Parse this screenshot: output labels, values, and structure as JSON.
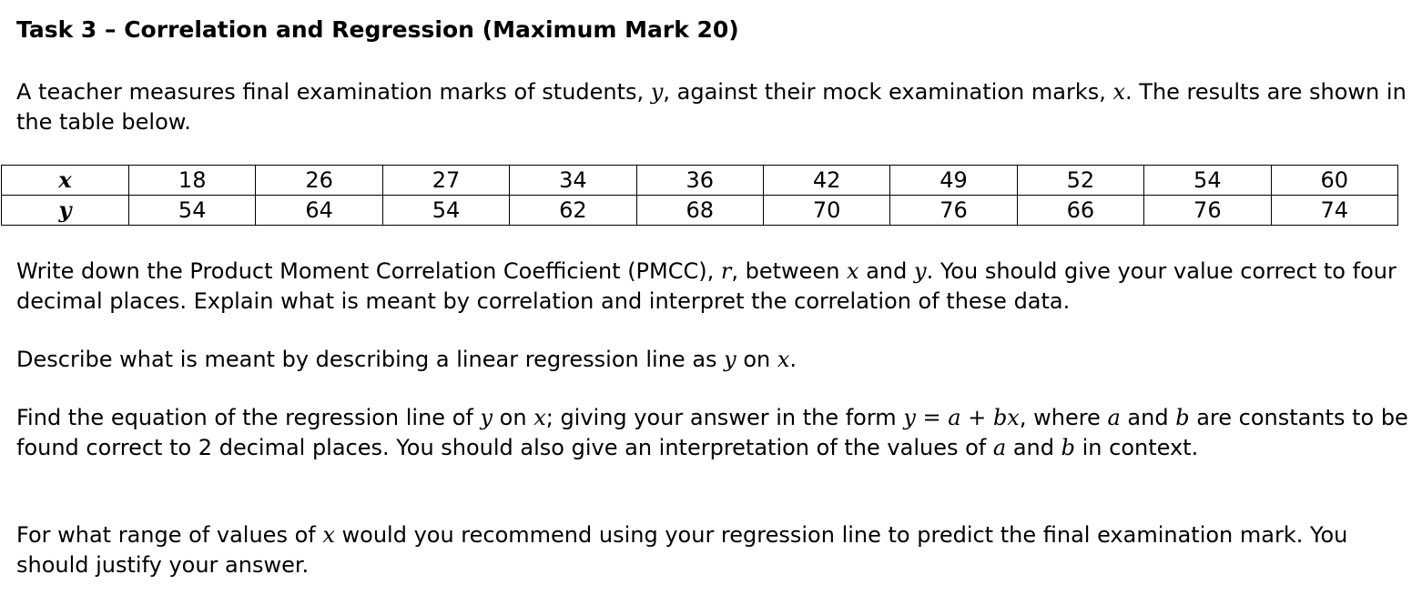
{
  "title": "Task 3 – Correlation and Regression (Maximum Mark 20)",
  "intro": {
    "t1": "A teacher measures final examination marks of students, ",
    "var_y": "y",
    "t2": ", against their mock examination marks, ",
    "var_x": "x",
    "t3": ".  The results are shown in the table below."
  },
  "table": {
    "header_x": "x",
    "header_y": "y",
    "x_values": [
      "18",
      "26",
      "27",
      "34",
      "36",
      "42",
      "49",
      "52",
      "54",
      "60"
    ],
    "y_values": [
      "54",
      "64",
      "54",
      "62",
      "68",
      "70",
      "76",
      "66",
      "76",
      "74"
    ]
  },
  "q1": {
    "t1": "Write down the Product Moment Correlation Coefficient (PMCC), ",
    "var_r": "r",
    "t2": ", between ",
    "var_x": "x",
    "t3": " and ",
    "var_y": "y",
    "t4": ".  You should give your value correct to four decimal places.  Explain what is meant by correlation and interpret the correlation of these data."
  },
  "q2": {
    "t1": "Describe what is meant by describing a linear regression line as ",
    "var_y": "y",
    "t2": " on ",
    "var_x": "x",
    "t3": "."
  },
  "q3": {
    "t1": "Find the equation of the regression line of ",
    "var_y": "y",
    "t2": " on ",
    "var_x": "x",
    "t3": "; giving your answer in the form ",
    "eq_y": "y",
    "eq_equals": " = ",
    "eq_a": "a",
    "eq_plus": " + ",
    "eq_bx": "bx",
    "t4": ", where ",
    "var_a": "a",
    "t5": " and ",
    "var_b": "b",
    "t6": " are constants to be found correct to 2 decimal places.  You should also give an interpretation of the values of ",
    "var_a2": "a",
    "t7": " and ",
    "var_b2": "b",
    "t8": " in context."
  },
  "q4": {
    "t1": "For what range of values of ",
    "var_x": "x",
    "t2": " would you recommend using your regression line to predict the final examination mark.  You should justify your answer."
  }
}
